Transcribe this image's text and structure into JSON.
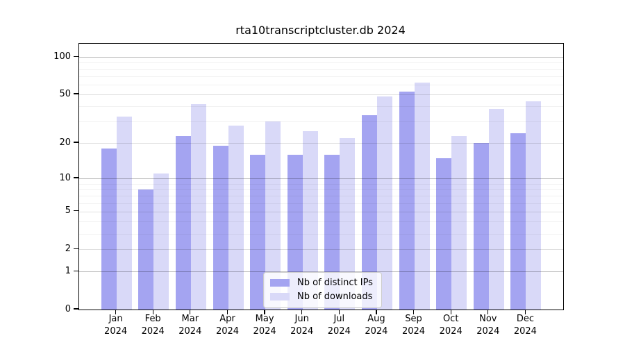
{
  "chart_data": {
    "type": "bar",
    "title": "rta10transcriptcluster.db 2024",
    "categories": [
      "Jan",
      "Feb",
      "Mar",
      "Apr",
      "May",
      "Jun",
      "Jul",
      "Aug",
      "Sep",
      "Oct",
      "Nov",
      "Dec"
    ],
    "tick_year": "2024",
    "series": [
      {
        "name": "Nb of distinct IPs",
        "color": "#a4a4f1",
        "values": [
          18,
          8,
          23,
          19,
          16,
          16,
          16,
          34,
          53,
          15,
          20,
          24
        ]
      },
      {
        "name": "Nb of downloads",
        "color": "#d9d9f8",
        "values": [
          33,
          11,
          42,
          28,
          30,
          25,
          22,
          48,
          62,
          23,
          38,
          44
        ]
      }
    ],
    "yscale": "log1p",
    "yticks": [
      0,
      1,
      2,
      5,
      10,
      20,
      50,
      100
    ],
    "minor_yticks": [
      3,
      4,
      6,
      7,
      8,
      9,
      30,
      40,
      60,
      70,
      80,
      90
    ],
    "ylim": [
      0,
      128
    ],
    "grid": true,
    "grid_above_bars": true,
    "legend_position": "lower center",
    "axis_color": "#000000",
    "background_color": "#ffffff"
  }
}
